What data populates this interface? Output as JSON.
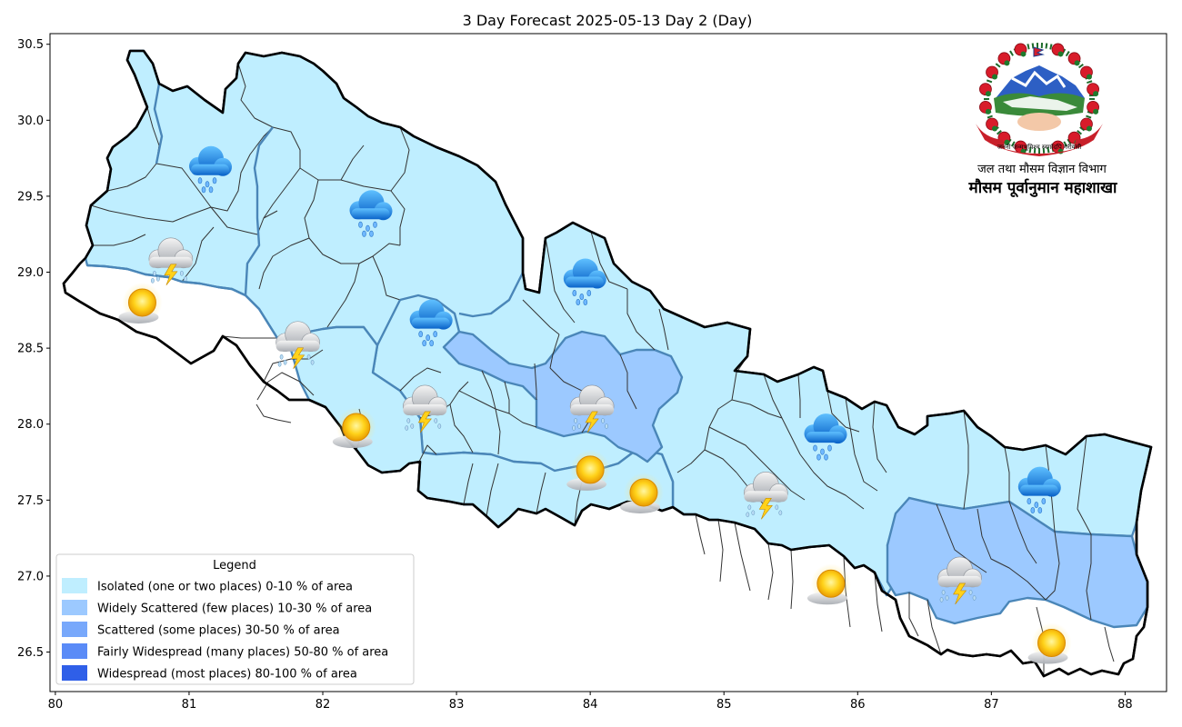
{
  "title": "3 Day Forecast 2025-05-13 Day 2 (Day)",
  "axes": {
    "x_ticks": [
      "80",
      "81",
      "82",
      "83",
      "84",
      "85",
      "86",
      "87",
      "88"
    ],
    "y_ticks": [
      "30.5",
      "30.0",
      "29.5",
      "29.0",
      "28.5",
      "28.0",
      "27.5",
      "27.0",
      "26.5"
    ],
    "xlim": [
      79.96,
      88.31
    ],
    "ylim": [
      26.24,
      30.57
    ]
  },
  "legend": {
    "title": "Legend",
    "items": [
      {
        "label": "Isolated (one or two places)  0-10 % of area",
        "color": "#bfeeff"
      },
      {
        "label": "Widely Scattered (few places) 10-30 % of area",
        "color": "#9cc9ff"
      },
      {
        "label": "Scattered (some places) 30-50  % of area",
        "color": "#78a8fb"
      },
      {
        "label": "Fairly Widespread (many places) 50-80 % of area",
        "color": "#5a8bf7"
      },
      {
        "label": "Widespread (most places) 80-100 % of area",
        "color": "#2f5fe8"
      }
    ]
  },
  "department": {
    "line1": "जल तथा मौसम विज्ञान विभाग",
    "line2": "मौसम पूर्वानुमान महाशाखा",
    "emblem_text": "जननी जन्मभूमिश्च स्वर्गादपि गरीयसी"
  },
  "colors": {
    "isolated": "#bfeeff",
    "widely_scattered": "#9cc9ff",
    "district_line": "#333333",
    "province_line": "#4a86b8",
    "border": "#000000"
  },
  "icons": [
    {
      "name": "rain-cloud-icon",
      "lon": 81.15,
      "lat": 29.71
    },
    {
      "name": "rain-cloud-icon",
      "lon": 82.35,
      "lat": 29.42
    },
    {
      "name": "thunderstorm-icon",
      "lon": 80.85,
      "lat": 29.1
    },
    {
      "name": "sun-icon",
      "lon": 80.65,
      "lat": 28.8
    },
    {
      "name": "thunderstorm-icon",
      "lon": 81.8,
      "lat": 28.55
    },
    {
      "name": "rain-cloud-icon",
      "lon": 82.8,
      "lat": 28.7
    },
    {
      "name": "thunderstorm-icon",
      "lon": 82.75,
      "lat": 28.13
    },
    {
      "name": "sun-icon",
      "lon": 82.25,
      "lat": 27.98
    },
    {
      "name": "rain-cloud-icon",
      "lon": 83.95,
      "lat": 28.97
    },
    {
      "name": "thunderstorm-icon",
      "lon": 84.0,
      "lat": 28.13
    },
    {
      "name": "sun-icon",
      "lon": 84.0,
      "lat": 27.7
    },
    {
      "name": "sun-icon",
      "lon": 84.4,
      "lat": 27.55
    },
    {
      "name": "thunderstorm-icon",
      "lon": 85.3,
      "lat": 27.56
    },
    {
      "name": "rain-cloud-icon",
      "lon": 85.75,
      "lat": 27.95
    },
    {
      "name": "sun-icon",
      "lon": 85.8,
      "lat": 26.95
    },
    {
      "name": "thunderstorm-icon",
      "lon": 86.75,
      "lat": 27.0
    },
    {
      "name": "rain-cloud-icon",
      "lon": 87.35,
      "lat": 27.6
    },
    {
      "name": "sun-icon",
      "lon": 87.45,
      "lat": 26.56
    }
  ]
}
